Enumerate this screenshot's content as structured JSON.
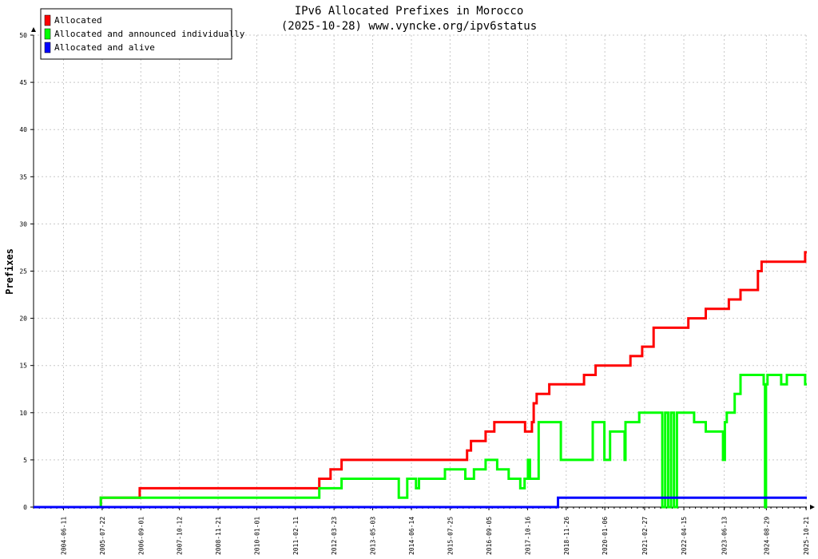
{
  "chart_data": {
    "type": "line",
    "title": "IPv6 Allocated Prefixes in Morocco",
    "subtitle": "(2025-10-28) www.vyncke.org/ipv6status",
    "ylabel": "Prefixes",
    "xlabel": "",
    "ylim": [
      0,
      50
    ],
    "yticks": [
      0,
      5,
      10,
      15,
      20,
      25,
      30,
      35,
      40,
      45,
      50
    ],
    "x_range": [
      "2003-08-01",
      "2025-10-28"
    ],
    "xticks": [
      "2004-06-11",
      "2005-07-22",
      "2006-09-01",
      "2007-10-12",
      "2008-11-21",
      "2010-01-01",
      "2011-02-11",
      "2012-03-23",
      "2013-05-03",
      "2014-06-14",
      "2015-07-25",
      "2016-09-05",
      "2017-10-16",
      "2018-11-26",
      "2020-01-06",
      "2021-02-27",
      "2022-04-15",
      "2023-06-13",
      "2024-08-29",
      "2025-10-21"
    ],
    "grid": true,
    "legend_position": "top-left",
    "series": [
      {
        "name": "Allocated",
        "color": "#ff0000",
        "points": [
          [
            "2003-08-01",
            0
          ],
          [
            "2005-07-08",
            0
          ],
          [
            "2005-07-08",
            1
          ],
          [
            "2006-08-20",
            1
          ],
          [
            "2006-08-20",
            2
          ],
          [
            "2011-10-20",
            2
          ],
          [
            "2011-10-20",
            3
          ],
          [
            "2012-02-15",
            3
          ],
          [
            "2012-02-15",
            4
          ],
          [
            "2012-06-10",
            4
          ],
          [
            "2012-06-10",
            5
          ],
          [
            "2016-01-20",
            5
          ],
          [
            "2016-01-20",
            6
          ],
          [
            "2016-03-01",
            6
          ],
          [
            "2016-03-01",
            7
          ],
          [
            "2016-08-01",
            7
          ],
          [
            "2016-08-01",
            8
          ],
          [
            "2016-11-01",
            8
          ],
          [
            "2016-11-01",
            9
          ],
          [
            "2017-09-20",
            9
          ],
          [
            "2017-09-20",
            8
          ],
          [
            "2017-12-01",
            8
          ],
          [
            "2017-12-01",
            9
          ],
          [
            "2017-12-20",
            9
          ],
          [
            "2017-12-20",
            11
          ],
          [
            "2018-01-20",
            11
          ],
          [
            "2018-01-20",
            12
          ],
          [
            "2018-06-01",
            12
          ],
          [
            "2018-06-01",
            13
          ],
          [
            "2019-06-01",
            13
          ],
          [
            "2019-06-01",
            14
          ],
          [
            "2019-10-01",
            14
          ],
          [
            "2019-10-01",
            15
          ],
          [
            "2020-10-01",
            15
          ],
          [
            "2020-10-01",
            16
          ],
          [
            "2021-02-01",
            16
          ],
          [
            "2021-02-01",
            17
          ],
          [
            "2021-06-01",
            17
          ],
          [
            "2021-06-01",
            19
          ],
          [
            "2022-06-01",
            19
          ],
          [
            "2022-06-01",
            20
          ],
          [
            "2022-12-01",
            20
          ],
          [
            "2022-12-01",
            21
          ],
          [
            "2023-08-01",
            21
          ],
          [
            "2023-08-01",
            22
          ],
          [
            "2023-12-01",
            22
          ],
          [
            "2023-12-01",
            23
          ],
          [
            "2024-06-01",
            23
          ],
          [
            "2024-06-01",
            25
          ],
          [
            "2024-07-10",
            25
          ],
          [
            "2024-07-10",
            26
          ],
          [
            "2025-10-10",
            26
          ],
          [
            "2025-10-10",
            27
          ],
          [
            "2025-10-28",
            27
          ]
        ]
      },
      {
        "name": "Allocated and announced individually",
        "color": "#00ff00",
        "points": [
          [
            "2003-08-01",
            0
          ],
          [
            "2005-07-08",
            0
          ],
          [
            "2005-07-08",
            1
          ],
          [
            "2011-10-20",
            1
          ],
          [
            "2011-10-20",
            2
          ],
          [
            "2012-06-10",
            2
          ],
          [
            "2012-06-10",
            3
          ],
          [
            "2014-02-01",
            3
          ],
          [
            "2014-02-01",
            1
          ],
          [
            "2014-05-01",
            1
          ],
          [
            "2014-05-01",
            3
          ],
          [
            "2014-08-01",
            3
          ],
          [
            "2014-08-01",
            2
          ],
          [
            "2014-09-01",
            2
          ],
          [
            "2014-09-01",
            3
          ],
          [
            "2015-06-01",
            3
          ],
          [
            "2015-06-01",
            4
          ],
          [
            "2016-01-01",
            4
          ],
          [
            "2016-01-01",
            3
          ],
          [
            "2016-04-01",
            3
          ],
          [
            "2016-04-01",
            4
          ],
          [
            "2016-08-01",
            4
          ],
          [
            "2016-08-01",
            5
          ],
          [
            "2016-12-01",
            5
          ],
          [
            "2016-12-01",
            4
          ],
          [
            "2017-04-01",
            4
          ],
          [
            "2017-04-01",
            3
          ],
          [
            "2017-08-01",
            3
          ],
          [
            "2017-08-01",
            2
          ],
          [
            "2017-09-15",
            2
          ],
          [
            "2017-09-15",
            3
          ],
          [
            "2017-10-20",
            3
          ],
          [
            "2017-10-20",
            5
          ],
          [
            "2017-11-10",
            5
          ],
          [
            "2017-11-10",
            3
          ],
          [
            "2018-02-10",
            3
          ],
          [
            "2018-02-10",
            9
          ],
          [
            "2018-10-01",
            9
          ],
          [
            "2018-10-01",
            5
          ],
          [
            "2019-09-01",
            5
          ],
          [
            "2019-09-01",
            9
          ],
          [
            "2020-01-01",
            9
          ],
          [
            "2020-01-01",
            5
          ],
          [
            "2020-03-01",
            5
          ],
          [
            "2020-03-01",
            8
          ],
          [
            "2020-08-01",
            8
          ],
          [
            "2020-08-01",
            5
          ],
          [
            "2020-08-10",
            5
          ],
          [
            "2020-08-10",
            9
          ],
          [
            "2021-01-01",
            9
          ],
          [
            "2021-01-01",
            10
          ],
          [
            "2021-09-01",
            10
          ],
          [
            "2021-09-01",
            0
          ],
          [
            "2021-10-01",
            0
          ],
          [
            "2021-10-01",
            10
          ],
          [
            "2021-11-01",
            10
          ],
          [
            "2021-11-01",
            0
          ],
          [
            "2021-12-01",
            0
          ],
          [
            "2021-12-01",
            10
          ],
          [
            "2022-01-01",
            10
          ],
          [
            "2022-01-01",
            0
          ],
          [
            "2022-02-01",
            0
          ],
          [
            "2022-02-01",
            10
          ],
          [
            "2022-08-01",
            10
          ],
          [
            "2022-08-01",
            9
          ],
          [
            "2022-12-01",
            9
          ],
          [
            "2022-12-01",
            8
          ],
          [
            "2023-06-01",
            8
          ],
          [
            "2023-06-01",
            5
          ],
          [
            "2023-06-20",
            5
          ],
          [
            "2023-06-20",
            9
          ],
          [
            "2023-07-10",
            9
          ],
          [
            "2023-07-10",
            10
          ],
          [
            "2023-10-01",
            10
          ],
          [
            "2023-10-01",
            12
          ],
          [
            "2023-12-01",
            12
          ],
          [
            "2023-12-01",
            14
          ],
          [
            "2024-08-01",
            14
          ],
          [
            "2024-08-01",
            13
          ],
          [
            "2024-08-15",
            13
          ],
          [
            "2024-08-15",
            0
          ],
          [
            "2024-08-25",
            0
          ],
          [
            "2024-08-25",
            13
          ],
          [
            "2024-09-10",
            13
          ],
          [
            "2024-09-10",
            14
          ],
          [
            "2025-02-01",
            14
          ],
          [
            "2025-02-01",
            13
          ],
          [
            "2025-04-01",
            13
          ],
          [
            "2025-04-01",
            14
          ],
          [
            "2025-10-10",
            14
          ],
          [
            "2025-10-10",
            13
          ],
          [
            "2025-10-28",
            13
          ]
        ]
      },
      {
        "name": "Allocated and alive",
        "color": "#0000ff",
        "points": [
          [
            "2003-08-01",
            0
          ],
          [
            "2018-09-01",
            0
          ],
          [
            "2018-09-01",
            1
          ],
          [
            "2025-10-28",
            1
          ]
        ]
      }
    ]
  }
}
